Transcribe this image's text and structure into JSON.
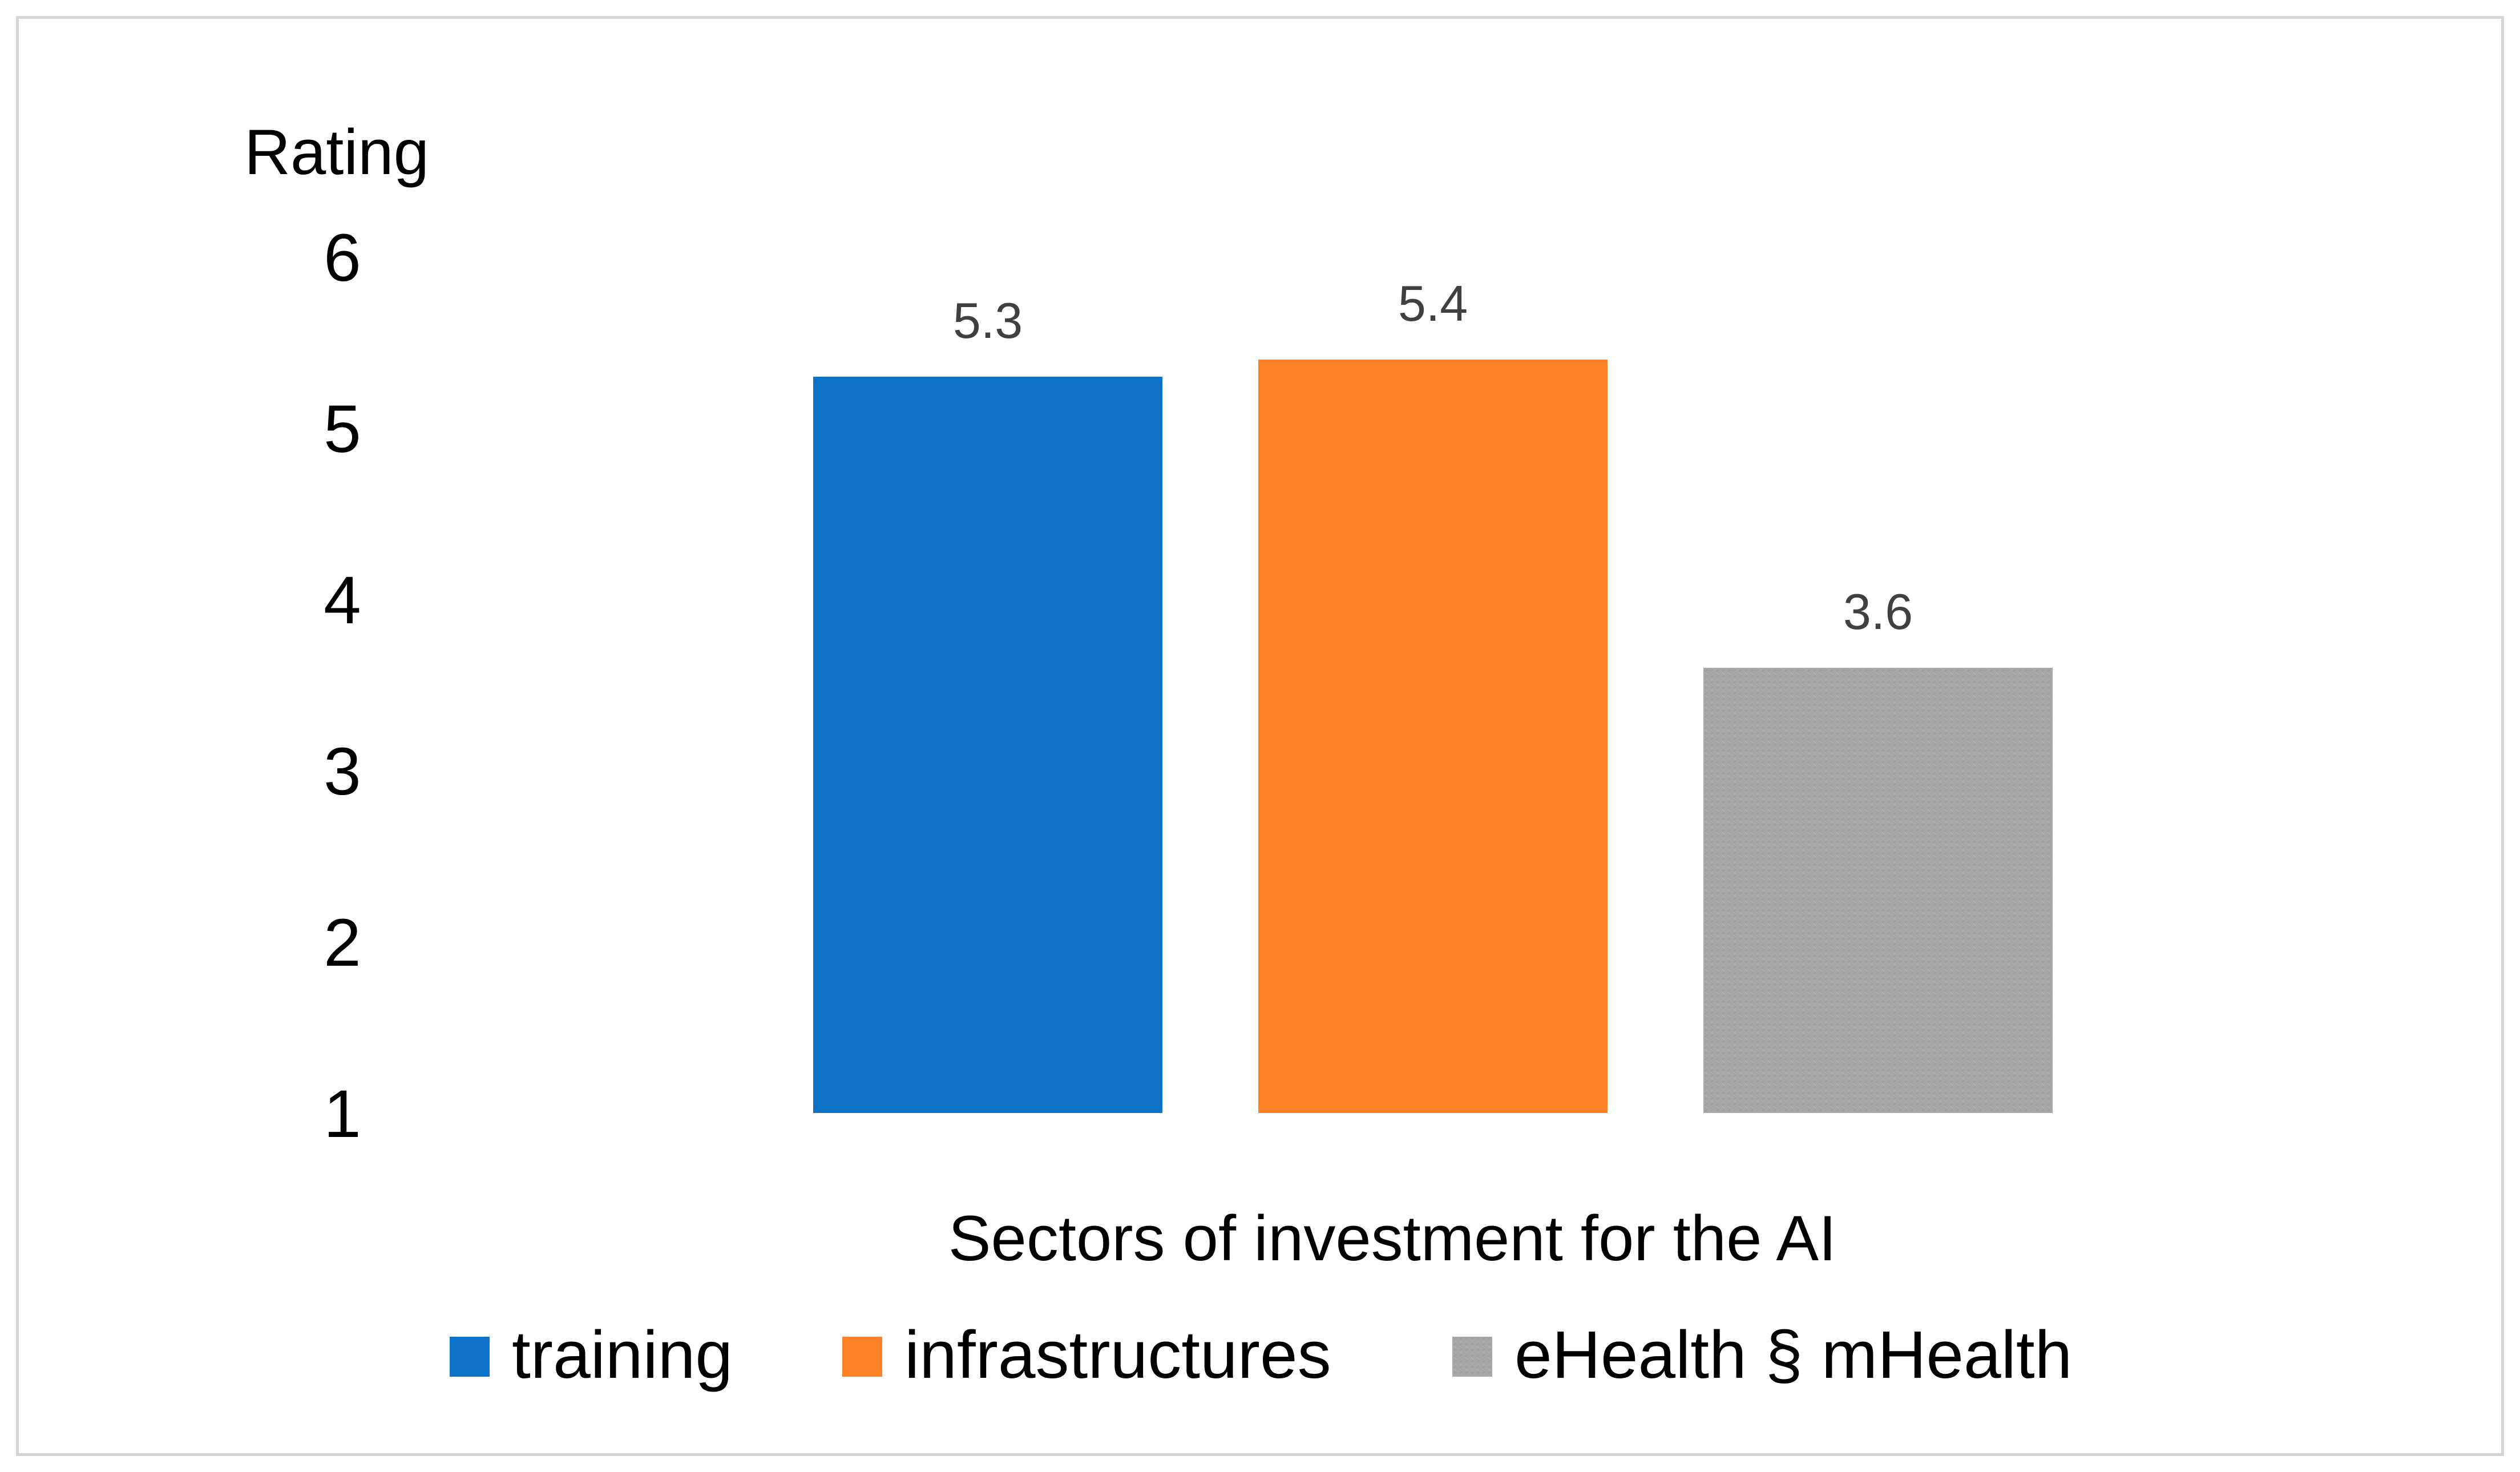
{
  "chart_data": {
    "type": "bar",
    "ylabel": "Rating",
    "xlabel": "Sectors of investment for the AI",
    "ylim": [
      1,
      6
    ],
    "yticks": [
      1,
      2,
      3,
      4,
      5,
      6
    ],
    "grid": false,
    "legend_position": "bottom",
    "series": [
      {
        "name": "training",
        "value": 5.3,
        "label": "5.3",
        "color": "#0E72C8"
      },
      {
        "name": "infrastructures",
        "value": 5.4,
        "label": "5.4",
        "color": "#FE8127"
      },
      {
        "name": "eHealth § mHealth",
        "value": 3.6,
        "label": "3.6",
        "color": "#A5A5A5"
      }
    ]
  }
}
